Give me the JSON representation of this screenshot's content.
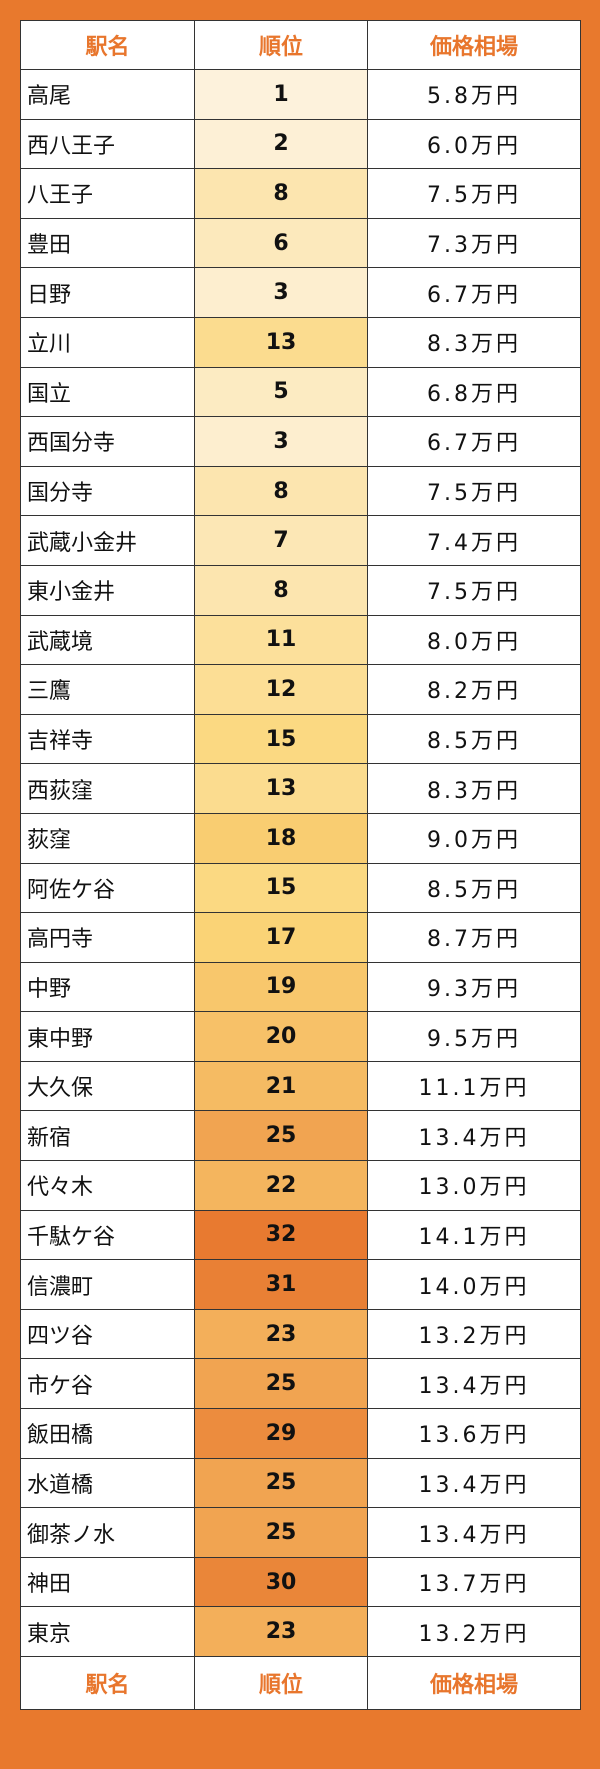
{
  "header": [
    "駅名",
    "順位",
    "価格相場"
  ],
  "rows": [
    [
      "高尾",
      1,
      "5.8万円"
    ],
    [
      "西八王子",
      2,
      "6.0万円"
    ],
    [
      "八王子",
      8,
      "7.5万円"
    ],
    [
      "豊田",
      6,
      "7.3万円"
    ],
    [
      "日野",
      3,
      "6.7万円"
    ],
    [
      "立川",
      13,
      "8.3万円"
    ],
    [
      "国立",
      5,
      "6.8万円"
    ],
    [
      "西国分寺",
      3,
      "6.7万円"
    ],
    [
      "国分寺",
      8,
      "7.5万円"
    ],
    [
      "武蔵小金井",
      7,
      "7.4万円"
    ],
    [
      "東小金井",
      8,
      "7.5万円"
    ],
    [
      "武蔵境",
      11,
      "8.0万円"
    ],
    [
      "三鷹",
      12,
      "8.2万円"
    ],
    [
      "吉祥寺",
      15,
      "8.5万円"
    ],
    [
      "西荻窪",
      13,
      "8.3万円"
    ],
    [
      "荻窪",
      18,
      "9.0万円"
    ],
    [
      "阿佐ケ谷",
      15,
      "8.5万円"
    ],
    [
      "高円寺",
      17,
      "8.7万円"
    ],
    [
      "中野",
      19,
      "9.3万円"
    ],
    [
      "東中野",
      20,
      "9.5万円"
    ],
    [
      "大久保",
      21,
      "11.1万円"
    ],
    [
      "新宿",
      25,
      "13.4万円"
    ],
    [
      "代々木",
      22,
      "13.0万円"
    ],
    [
      "千駄ケ谷",
      32,
      "14.1万円"
    ],
    [
      "信濃町",
      31,
      "14.0万円"
    ],
    [
      "四ツ谷",
      23,
      "13.2万円"
    ],
    [
      "市ケ谷",
      25,
      "13.4万円"
    ],
    [
      "飯田橋",
      29,
      "13.6万円"
    ],
    [
      "水道橋",
      25,
      "13.4万円"
    ],
    [
      "御茶ノ水",
      25,
      "13.4万円"
    ],
    [
      "神田",
      30,
      "13.7万円"
    ],
    [
      "東京",
      23,
      "13.2万円"
    ]
  ],
  "footer": [
    "駅名",
    "順位",
    "価格相場"
  ]
}
